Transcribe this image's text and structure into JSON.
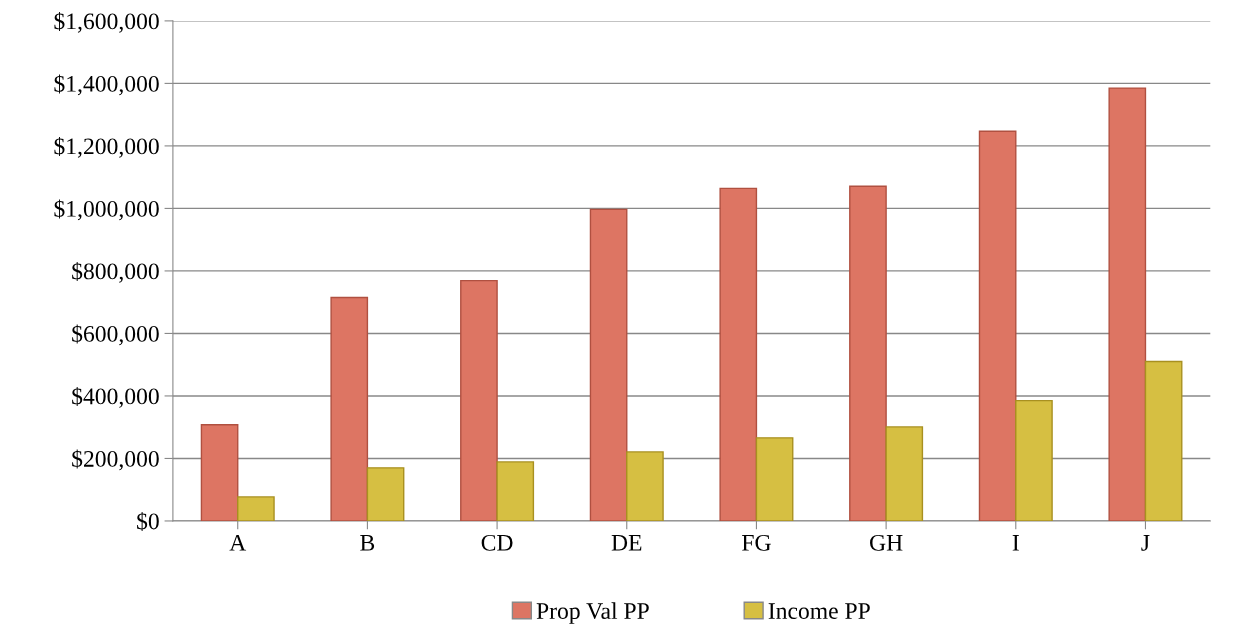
{
  "chart_data": {
    "type": "bar",
    "categories": [
      "A",
      "B",
      "CD",
      "DE",
      "FG",
      "GH",
      "I",
      "J"
    ],
    "series": [
      {
        "name": "Prop Val PP",
        "color": "#dd7563",
        "values": [
          308000,
          715000,
          769000,
          997000,
          1064000,
          1071000,
          1247000,
          1385000
        ]
      },
      {
        "name": "Income PP",
        "color": "#d6bf42",
        "values": [
          77000,
          170000,
          189000,
          221000,
          266000,
          301000,
          385000,
          510000
        ]
      }
    ],
    "ylim": [
      0,
      1600000
    ],
    "yticks": [
      {
        "value": 0,
        "label": "$0"
      },
      {
        "value": 200000,
        "label": "$200,000"
      },
      {
        "value": 400000,
        "label": "$400,000"
      },
      {
        "value": 600000,
        "label": "$600,000"
      },
      {
        "value": 800000,
        "label": "$800,000"
      },
      {
        "value": 1000000,
        "label": "$1,000,000"
      },
      {
        "value": 1200000,
        "label": "$1,200,000"
      },
      {
        "value": 1400000,
        "label": "$1,400,000"
      },
      {
        "value": 1600000,
        "label": "$1,600,000"
      }
    ],
    "grid": "y",
    "legend": "bottom"
  }
}
